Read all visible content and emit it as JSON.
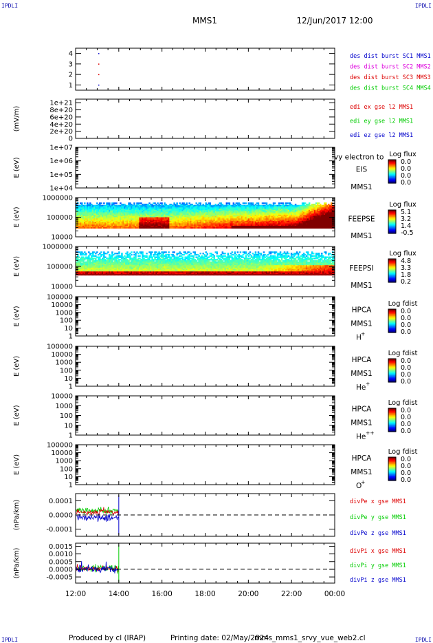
{
  "corner_labels": {
    "top_left": "IPDLI",
    "top_right": "IPDLI",
    "bottom_left": "IPDLI",
    "bottom_right": "IPDLI"
  },
  "header": {
    "spacecraft": "MMS1",
    "date_time": "12/Jun/2017 12:00"
  },
  "footer": {
    "produced_by": "Produced by cl (IRAP)",
    "printing_date": "Printing date: 02/May/2024",
    "file": "mms_mms1_srvy_vue_web2.cl"
  },
  "colors": {
    "red": "#dd0000",
    "green": "#00cc00",
    "blue": "#0000cc",
    "magenta": "#dd00dd"
  },
  "time_axis": {
    "ticks": [
      "12:00",
      "14:00",
      "16:00",
      "18:00",
      "20:00",
      "22:00",
      "00:00"
    ],
    "range_hours": [
      12,
      24
    ]
  },
  "chart_data": [
    {
      "id": "burst",
      "type": "scatter",
      "ylabel": "",
      "ylim": [
        0.5,
        4.5
      ],
      "y_ticks": [
        "1",
        "2",
        "3",
        "4"
      ],
      "series": [
        {
          "name": "des dist burst SC1 MMS1",
          "color": "#0000cc",
          "points": [
            [
              13.05,
              1
            ],
            [
              13.05,
              4
            ]
          ]
        },
        {
          "name": "des dist burst SC2 MMS2",
          "color": "#dd00dd",
          "points": []
        },
        {
          "name": "des dist burst SC3 MMS3",
          "color": "#dd0000",
          "points": [
            [
              13.05,
              2
            ],
            [
              13.05,
              3
            ]
          ]
        },
        {
          "name": "des dist burst SC4 MMS4",
          "color": "#00cc00",
          "points": []
        }
      ]
    },
    {
      "id": "edi",
      "type": "line",
      "ylabel": "(mV/m)",
      "ylim": [
        0,
        1.1e+21
      ],
      "y_ticks": [
        "1e+21",
        "8e+20",
        "6e+20",
        "4e+20",
        "2e+20",
        "0"
      ],
      "zero_line": true,
      "series": [
        {
          "name": "edi ex gse l2 MMS1",
          "color": "#dd0000"
        },
        {
          "name": "edi ey gse l2 MMS1",
          "color": "#00cc00"
        },
        {
          "name": "edi ez gse l2 MMS1",
          "color": "#0000cc"
        }
      ]
    },
    {
      "id": "eis",
      "type": "heatmap",
      "ylabel": "E (eV)",
      "y_ticks": [
        "1e+07",
        "1e+06",
        "1e+05",
        "1e+04"
      ],
      "instrument": "EIS",
      "overlay_text": "ivy electron to",
      "spacecraft": "MMS1",
      "colorbar": {
        "title": "Log flux",
        "ticks": [
          "0.0",
          "0.0",
          "0.0",
          "0.0"
        ]
      }
    },
    {
      "id": "feepse",
      "type": "heatmap",
      "ylabel": "E (eV)",
      "y_ticks": [
        "1000000",
        "100000",
        "10000"
      ],
      "instrument": "FEEPSE",
      "spacecraft": "MMS1",
      "colorbar": {
        "title": "Log flux",
        "ticks": [
          "5.1",
          "3.2",
          "1.4",
          "-0.5"
        ]
      }
    },
    {
      "id": "feepsi",
      "type": "heatmap",
      "ylabel": "E (eV)",
      "y_ticks": [
        "1000000",
        "100000",
        "10000"
      ],
      "instrument": "FEEPSI",
      "spacecraft": "MMS1",
      "colorbar": {
        "title": "Log flux",
        "ticks": [
          "4.8",
          "3.3",
          "1.8",
          "0.2"
        ]
      }
    },
    {
      "id": "hpca_h",
      "type": "heatmap",
      "ylabel": "E (eV)",
      "y_ticks": [
        "100000",
        "10000",
        "1000",
        "100",
        "10",
        "1"
      ],
      "instrument": "HPCA",
      "spacecraft": "MMS1",
      "species": "H",
      "charge": "+",
      "colorbar": {
        "title": "Log fdist",
        "ticks": [
          "0.0",
          "0.0",
          "0.0",
          "0.0"
        ]
      }
    },
    {
      "id": "hpca_he1",
      "type": "heatmap",
      "ylabel": "E (eV)",
      "y_ticks": [
        "100000",
        "10000",
        "1000",
        "100",
        "10",
        "1"
      ],
      "instrument": "HPCA",
      "spacecraft": "MMS1",
      "species": "He",
      "charge": "+",
      "colorbar": {
        "title": "Log fdist",
        "ticks": [
          "0.0",
          "0.0",
          "0.0",
          "0.0"
        ]
      }
    },
    {
      "id": "hpca_he2",
      "type": "heatmap",
      "ylabel": "E (eV)",
      "y_ticks": [
        "10000",
        "1000",
        "100",
        "10",
        "1"
      ],
      "instrument": "HPCA",
      "spacecraft": "MMS1",
      "species": "He",
      "charge": "++",
      "colorbar": {
        "title": "Log fdist",
        "ticks": [
          "0.0",
          "0.0",
          "0.0",
          "0.0"
        ]
      }
    },
    {
      "id": "hpca_o",
      "type": "heatmap",
      "ylabel": "E (eV)",
      "y_ticks": [
        "100000",
        "10000",
        "1000",
        "100",
        "10",
        "1"
      ],
      "instrument": "HPCA",
      "spacecraft": "MMS1",
      "species": "O",
      "charge": "+",
      "colorbar": {
        "title": "Log fdist",
        "ticks": [
          "0.0",
          "0.0",
          "0.0",
          "0.0"
        ]
      }
    },
    {
      "id": "divpe",
      "type": "line",
      "ylabel": "(nPa/km)",
      "ylim": [
        -0.00015,
        0.00015
      ],
      "y_ticks": [
        "0.0001",
        "0.0000",
        "-0.0001"
      ],
      "zero_line": true,
      "data_end_hour": 14.0,
      "series": [
        {
          "name": "divPe x gse MMS1",
          "color": "#dd0000"
        },
        {
          "name": "divPe y gse MMS1",
          "color": "#00cc00"
        },
        {
          "name": "divPe z gse MMS1",
          "color": "#0000cc"
        }
      ]
    },
    {
      "id": "divpi",
      "type": "line",
      "ylabel": "(nPa/km)",
      "ylim": [
        -0.0009,
        0.0017
      ],
      "y_ticks": [
        "0.0015",
        "0.0010",
        "0.0005",
        "0.0000",
        "-0.0005"
      ],
      "zero_line": true,
      "data_end_hour": 14.0,
      "series": [
        {
          "name": "divPi x gse MMS1",
          "color": "#dd0000"
        },
        {
          "name": "divPi y gse MMS1",
          "color": "#00cc00"
        },
        {
          "name": "divPi z gse MMS1",
          "color": "#0000cc"
        }
      ]
    }
  ]
}
